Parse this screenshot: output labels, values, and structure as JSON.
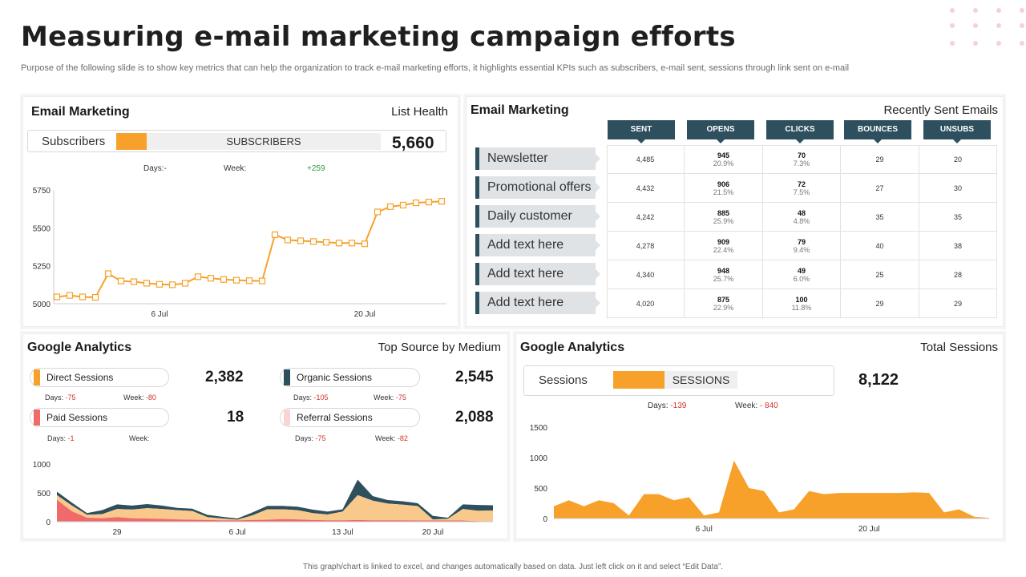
{
  "page": {
    "title": "Measuring e-mail marketing campaign efforts",
    "subtitle": "Purpose of the following slide is to show key metrics that can help the organization to track e-mail marketing efforts, it highlights essential KPIs such as subscribers, e-mail sent, sessions through link sent on e-mail",
    "footer": "This graph/chart is linked to excel, and changes automatically based on data. Just left click on it and select “Edit Data”."
  },
  "colors": {
    "orange": "#f7a12b",
    "dark_teal": "#2e4f5e",
    "red": "#f06a6a",
    "light_orange": "#f9c98c"
  },
  "list_health": {
    "title": "Email Marketing",
    "right_label": "List Health",
    "pill_label": "Subscribers",
    "pill_bar_label": "SUBSCRIBERS",
    "value": "5,660",
    "days_label": "Days:-",
    "week_label": "Week:",
    "week_value": "+259"
  },
  "recent_emails": {
    "title": "Email Marketing",
    "right_label": "Recently Sent Emails",
    "columns": [
      "SENT",
      "OPENS",
      "CLICKS",
      "BOUNCES",
      "UNSUBS"
    ],
    "rows": [
      {
        "label": "Newsletter",
        "sent": "4,485",
        "opens": "945",
        "opens_pct": "20.9%",
        "clicks": "70",
        "clicks_pct": "7.3%",
        "bounces": "29",
        "unsubs": "20"
      },
      {
        "label": "Promotional offers",
        "sent": "4,432",
        "opens": "906",
        "opens_pct": "21.5%",
        "clicks": "72",
        "clicks_pct": "7.5%",
        "bounces": "27",
        "unsubs": "30"
      },
      {
        "label": "Daily customer",
        "sent": "4,242",
        "opens": "885",
        "opens_pct": "25.9%",
        "clicks": "48",
        "clicks_pct": "4.8%",
        "bounces": "35",
        "unsubs": "35"
      },
      {
        "label": "Add text here",
        "sent": "4,278",
        "opens": "909",
        "opens_pct": "22.4%",
        "clicks": "79",
        "clicks_pct": "9.4%",
        "bounces": "40",
        "unsubs": "38"
      },
      {
        "label": "Add text here",
        "sent": "4,340",
        "opens": "948",
        "opens_pct": "25.7%",
        "clicks": "49",
        "clicks_pct": "6.0%",
        "bounces": "25",
        "unsubs": "28"
      },
      {
        "label": "Add text here",
        "sent": "4,020",
        "opens": "875",
        "opens_pct": "22.9%",
        "clicks": "100",
        "clicks_pct": "11.8%",
        "bounces": "29",
        "unsubs": "29"
      }
    ]
  },
  "top_source": {
    "title": "Google Analytics",
    "right_label": "Top Source by Medium",
    "sources": [
      {
        "label": "Direct Sessions",
        "value": "2,382",
        "days_label": "Days:",
        "days": "-75",
        "week_label": "Week:",
        "week": "-80",
        "color": "#f7a12b"
      },
      {
        "label": "Organic Sessions",
        "value": "2,545",
        "days_label": "Days:",
        "days": "-105",
        "week_label": "Week:",
        "week": "-75",
        "color": "#2e4f5e"
      },
      {
        "label": "Paid Sessions",
        "value": "18",
        "days_label": "Days:",
        "days": "-1",
        "week_label": "Week:",
        "week": "",
        "color": "#f06a6a"
      },
      {
        "label": "Referral Sessions",
        "value": "2,088",
        "days_label": "Days:",
        "days": "-75",
        "week_label": "Week:",
        "week": "-82",
        "color": "#fbd3d3"
      }
    ]
  },
  "total_sessions": {
    "title": "Google Analytics",
    "right_label": "Total Sessions",
    "pill_label": "Sessions",
    "pill_bar_label": "SESSIONS",
    "value": "8,122",
    "days_label": "Days:",
    "days": "-139",
    "week_label": "Week:",
    "week": "- 840"
  },
  "chart_data": [
    {
      "type": "line",
      "title": "List Health",
      "ylim": [
        5000,
        5750
      ],
      "yticks": [
        5000,
        5250,
        5500,
        5750
      ],
      "xtick_labels": [
        {
          "label": "6 Jul",
          "index": 8
        },
        {
          "label": "20 Jul",
          "index": 24
        }
      ],
      "series": [
        {
          "name": "Subscribers",
          "values": [
            5045,
            5055,
            5045,
            5042,
            5198,
            5150,
            5145,
            5135,
            5128,
            5125,
            5135,
            5178,
            5168,
            5160,
            5155,
            5152,
            5150,
            5455,
            5420,
            5415,
            5410,
            5405,
            5400,
            5400,
            5395,
            5605,
            5640,
            5650,
            5665,
            5670,
            5675
          ]
        }
      ]
    },
    {
      "type": "area",
      "title": "Top Source by Medium",
      "ylim": [
        0,
        1000
      ],
      "yticks": [
        0,
        500,
        1000
      ],
      "xtick_labels": [
        {
          "label": "29",
          "index": 4
        },
        {
          "label": "6 Jul",
          "index": 12
        },
        {
          "label": "13 Jul",
          "index": 19
        },
        {
          "label": "20 Jul",
          "index": 25
        }
      ],
      "series": [
        {
          "name": "Paid Sessions",
          "values": [
            380,
            180,
            70,
            60,
            80,
            60,
            55,
            50,
            40,
            35,
            30,
            25,
            25,
            30,
            35,
            45,
            40,
            30,
            25,
            25,
            30,
            25,
            25,
            25,
            20,
            20,
            20,
            20,
            10,
            5
          ]
        },
        {
          "name": "Referral Sessions",
          "values": [
            80,
            100,
            50,
            70,
            140,
            150,
            180,
            170,
            160,
            150,
            50,
            30,
            10,
            80,
            180,
            170,
            160,
            120,
            100,
            150,
            430,
            340,
            290,
            270,
            250,
            20,
            30,
            200,
            180,
            190
          ]
        },
        {
          "name": "Organic Sessions",
          "values": [
            60,
            50,
            30,
            70,
            80,
            70,
            70,
            60,
            40,
            40,
            40,
            30,
            20,
            50,
            60,
            60,
            60,
            60,
            50,
            40,
            270,
            80,
            60,
            60,
            50,
            60,
            20,
            80,
            100,
            90
          ]
        }
      ]
    },
    {
      "type": "area",
      "title": "Total Sessions",
      "ylim": [
        0,
        1500
      ],
      "yticks": [
        0,
        500,
        1000,
        1500
      ],
      "xtick_labels": [
        {
          "label": "6 Jul",
          "index": 10
        },
        {
          "label": "20 Jul",
          "index": 21
        }
      ],
      "series": [
        {
          "name": "Sessions",
          "values": [
            200,
            300,
            200,
            300,
            250,
            50,
            400,
            400,
            300,
            350,
            50,
            100,
            950,
            500,
            450,
            100,
            150,
            450,
            400,
            420,
            420,
            420,
            420,
            420,
            430,
            420,
            100,
            150,
            30,
            10
          ]
        }
      ]
    }
  ]
}
